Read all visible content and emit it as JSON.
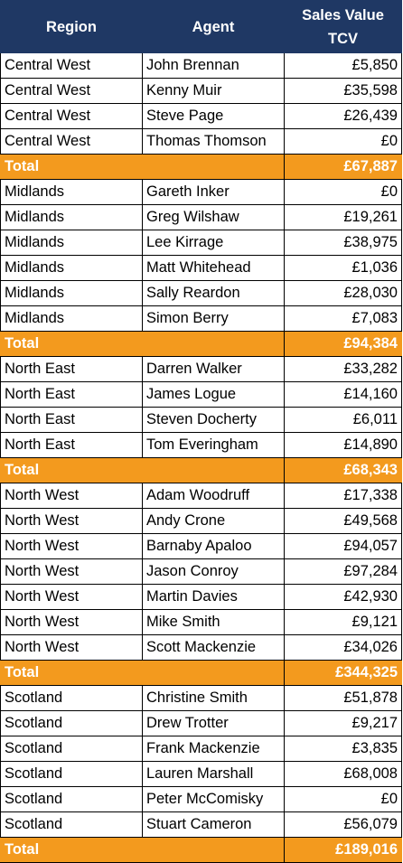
{
  "headers": {
    "region": "Region",
    "agent": "Agent",
    "sales_line1": "Sales Value",
    "sales_line2": "TCV"
  },
  "rows": [
    {
      "type": "data",
      "region": "Central West",
      "agent": "John Brennan",
      "value": "£5,850"
    },
    {
      "type": "data",
      "region": "Central West",
      "agent": "Kenny Muir",
      "value": "£35,598"
    },
    {
      "type": "data",
      "region": "Central West",
      "agent": "Steve Page",
      "value": "£26,439"
    },
    {
      "type": "data",
      "region": "Central West",
      "agent": "Thomas Thomson",
      "value": "£0"
    },
    {
      "type": "total",
      "region": "Total",
      "agent": "",
      "value": "£67,887"
    },
    {
      "type": "data",
      "region": "Midlands",
      "agent": "Gareth Inker",
      "value": "£0"
    },
    {
      "type": "data",
      "region": "Midlands",
      "agent": "Greg Wilshaw",
      "value": "£19,261"
    },
    {
      "type": "data",
      "region": "Midlands",
      "agent": "Lee Kirrage",
      "value": "£38,975"
    },
    {
      "type": "data",
      "region": "Midlands",
      "agent": "Matt Whitehead",
      "value": "£1,036"
    },
    {
      "type": "data",
      "region": "Midlands",
      "agent": "Sally Reardon",
      "value": "£28,030"
    },
    {
      "type": "data",
      "region": "Midlands",
      "agent": "Simon Berry",
      "value": "£7,083"
    },
    {
      "type": "total",
      "region": "Total",
      "agent": "",
      "value": "£94,384"
    },
    {
      "type": "data",
      "region": "North East",
      "agent": "Darren Walker",
      "value": "£33,282"
    },
    {
      "type": "data",
      "region": "North East",
      "agent": "James Logue",
      "value": "£14,160"
    },
    {
      "type": "data",
      "region": "North East",
      "agent": "Steven Docherty",
      "value": "£6,011"
    },
    {
      "type": "data",
      "region": "North East",
      "agent": "Tom Everingham",
      "value": "£14,890"
    },
    {
      "type": "total",
      "region": "Total",
      "agent": "",
      "value": "£68,343"
    },
    {
      "type": "data",
      "region": "North West",
      "agent": "Adam Woodruff",
      "value": "£17,338"
    },
    {
      "type": "data",
      "region": "North West",
      "agent": "Andy Crone",
      "value": "£49,568"
    },
    {
      "type": "data",
      "region": "North West",
      "agent": "Barnaby Apaloo",
      "value": "£94,057"
    },
    {
      "type": "data",
      "region": "North West",
      "agent": "Jason Conroy",
      "value": "£97,284"
    },
    {
      "type": "data",
      "region": "North West",
      "agent": "Martin Davies",
      "value": "£42,930"
    },
    {
      "type": "data",
      "region": "North West",
      "agent": "Mike Smith",
      "value": "£9,121"
    },
    {
      "type": "data",
      "region": "North West",
      "agent": "Scott Mackenzie",
      "value": "£34,026"
    },
    {
      "type": "total",
      "region": "Total",
      "agent": "",
      "value": "£344,325"
    },
    {
      "type": "data",
      "region": "Scotland",
      "agent": "Christine Smith",
      "value": "£51,878"
    },
    {
      "type": "data",
      "region": "Scotland",
      "agent": "Drew Trotter",
      "value": "£9,217"
    },
    {
      "type": "data",
      "region": "Scotland",
      "agent": "Frank Mackenzie",
      "value": "£3,835"
    },
    {
      "type": "data",
      "region": "Scotland",
      "agent": "Lauren Marshall",
      "value": "£68,008"
    },
    {
      "type": "data",
      "region": "Scotland",
      "agent": "Peter McComisky",
      "value": "£0"
    },
    {
      "type": "data",
      "region": "Scotland",
      "agent": "Stuart Cameron",
      "value": "£56,079"
    },
    {
      "type": "total",
      "region": "Total",
      "agent": "",
      "value": "£189,016"
    }
  ],
  "colors": {
    "header_bg": "#1f3864",
    "total_bg": "#f39a1e"
  }
}
